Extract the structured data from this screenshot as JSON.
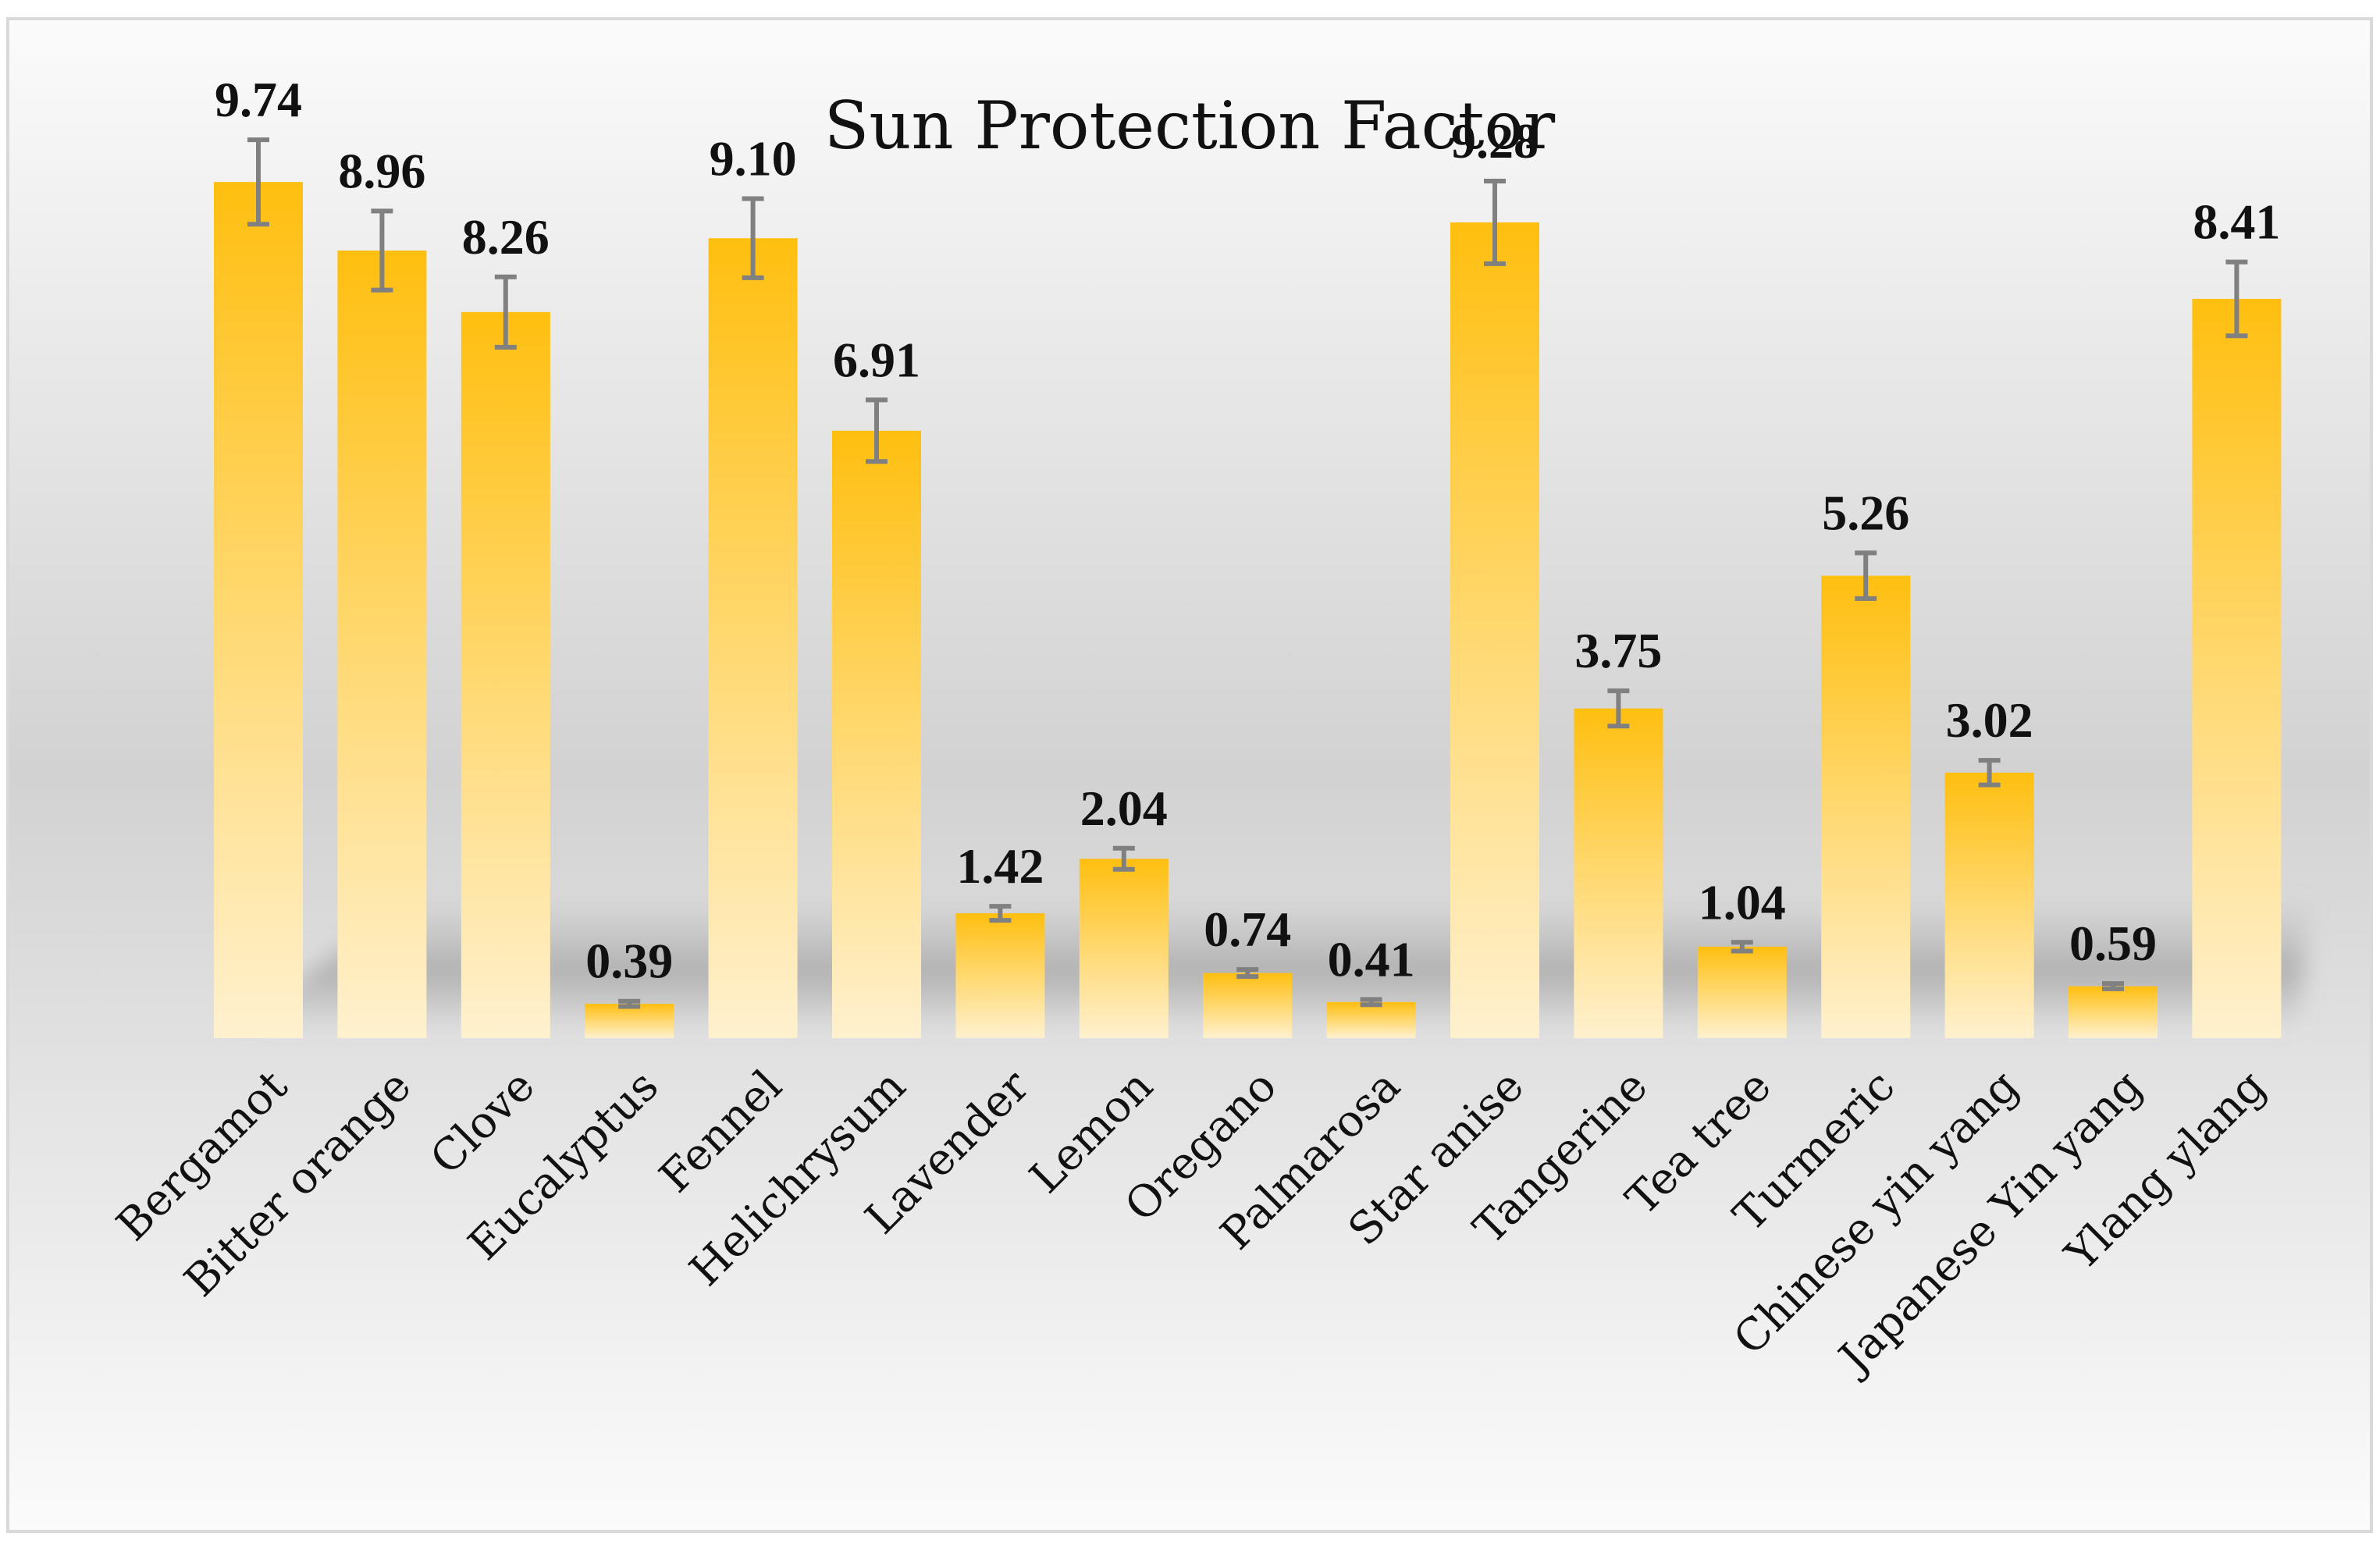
{
  "chart_data": {
    "type": "bar",
    "title": "Sun Protection Factor",
    "xlabel": "",
    "ylabel": "",
    "ylim": [
      0,
      11.1
    ],
    "grid": false,
    "legend": "none",
    "categories": [
      "Bergamot",
      "Bitter orange",
      "Clove",
      "Eucalyptus",
      "Fennel",
      "Helichrysum",
      "Lavender",
      "Lemon",
      "Oregano",
      "Palmarosa",
      "Star anise",
      "Tangerine",
      "Tea tree",
      "Turmeric",
      "Chinese yin yang",
      "Japanese Yin yang",
      "Ylang ylang"
    ],
    "values": [
      9.74,
      8.96,
      8.26,
      0.39,
      9.1,
      6.91,
      1.42,
      2.04,
      0.74,
      0.41,
      9.28,
      3.75,
      1.04,
      5.26,
      3.02,
      0.59,
      8.41
    ],
    "value_labels": [
      "9.74",
      "8.96",
      "8.26",
      "0.39",
      "9.10",
      "6.91",
      "1.42",
      "2.04",
      "0.74",
      "0.41",
      "9.28",
      "3.75",
      "1.04",
      "5.26",
      "3.02",
      "0.59",
      "8.41"
    ],
    "error": [
      0.48,
      0.45,
      0.4,
      0.03,
      0.45,
      0.35,
      0.08,
      0.12,
      0.04,
      0.03,
      0.47,
      0.2,
      0.05,
      0.26,
      0.14,
      0.03,
      0.42
    ],
    "colors": {
      "bar_top": "#FFBF10",
      "bar_bottom": "#FFF1CF",
      "error_bar": "#808080",
      "background_mid": "#D2D2D2",
      "border": "#D9D9D9"
    }
  }
}
